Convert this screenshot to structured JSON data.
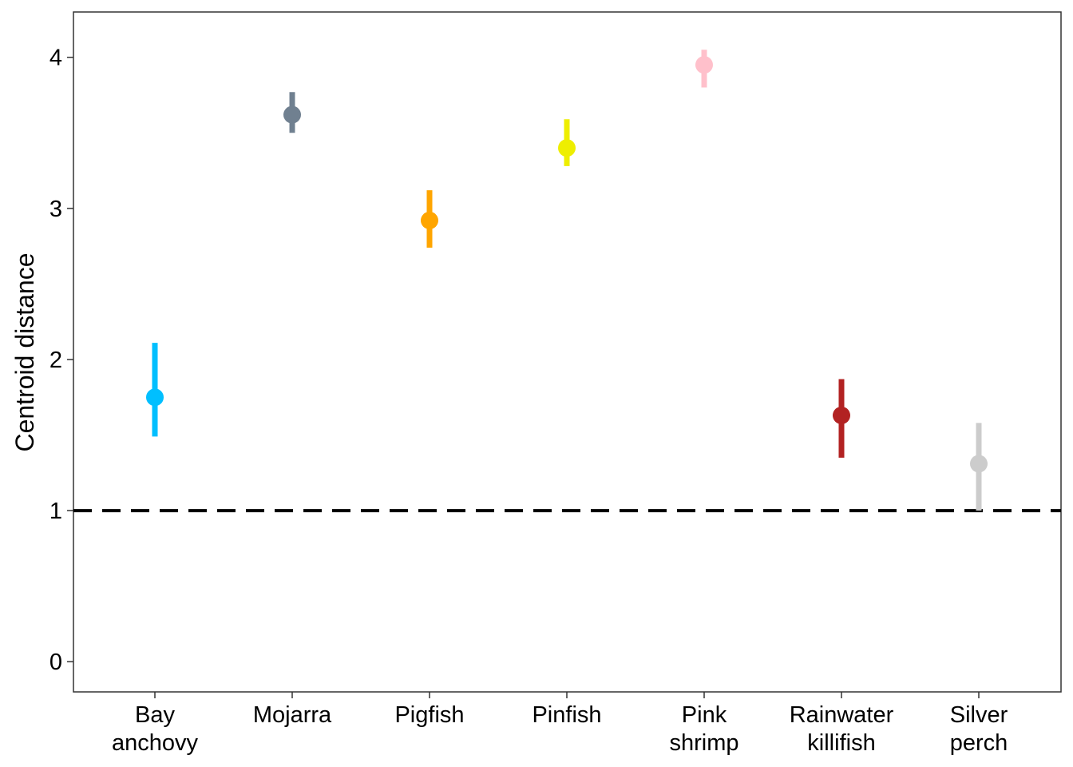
{
  "chart_data": {
    "type": "pointrange",
    "ylabel": "Centroid distance",
    "xlabel": "",
    "ylim": [
      -0.2,
      4.3
    ],
    "yticks": [
      0,
      1,
      2,
      3,
      4
    ],
    "reference_line": {
      "y": 1,
      "style": "dashed",
      "color": "#000000"
    },
    "grid": false,
    "categories": [
      {
        "lines": [
          "Bay",
          "anchovy"
        ]
      },
      {
        "lines": [
          "Mojarra"
        ]
      },
      {
        "lines": [
          "Pigfish"
        ]
      },
      {
        "lines": [
          "Pinfish"
        ]
      },
      {
        "lines": [
          "Pink",
          "shrimp"
        ]
      },
      {
        "lines": [
          "Rainwater",
          "killifish"
        ]
      },
      {
        "lines": [
          "Silver",
          "perch"
        ]
      }
    ],
    "points": [
      {
        "value": 1.75,
        "lower": 1.49,
        "upper": 2.11,
        "color": "#00BFFF"
      },
      {
        "value": 3.62,
        "lower": 3.5,
        "upper": 3.77,
        "color": "#708090"
      },
      {
        "value": 2.92,
        "lower": 2.74,
        "upper": 3.12,
        "color": "#FFA500"
      },
      {
        "value": 3.4,
        "lower": 3.28,
        "upper": 3.59,
        "color": "#EEEE00"
      },
      {
        "value": 3.95,
        "lower": 3.8,
        "upper": 4.05,
        "color": "#FFC0CB"
      },
      {
        "value": 1.63,
        "lower": 1.35,
        "upper": 1.87,
        "color": "#B22222"
      },
      {
        "value": 1.31,
        "lower": 1.0,
        "upper": 1.58,
        "color": "#CCCCCC"
      }
    ]
  }
}
